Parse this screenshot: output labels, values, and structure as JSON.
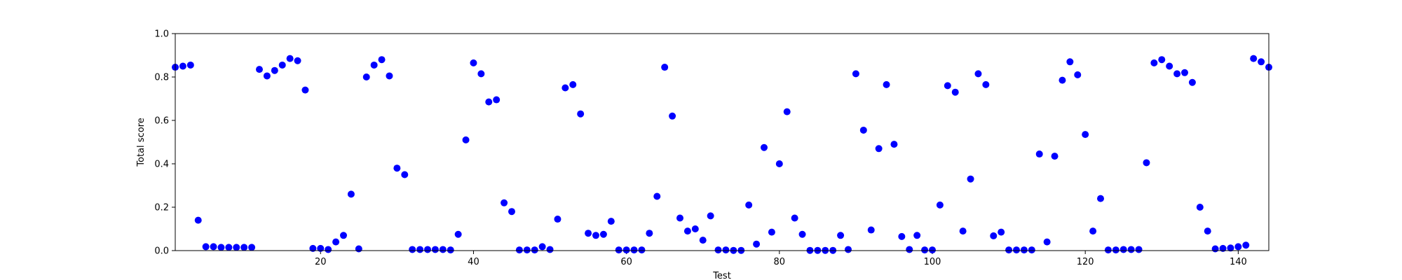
{
  "chart_data": {
    "type": "scatter",
    "title": "",
    "xlabel": "Test",
    "ylabel": "Total score",
    "xlim": [
      1,
      144
    ],
    "ylim": [
      0.0,
      1.0
    ],
    "x_ticks": [
      "20",
      "40",
      "60",
      "80",
      "100",
      "120",
      "140"
    ],
    "x_tick_values": [
      20,
      40,
      60,
      80,
      100,
      120,
      140
    ],
    "y_ticks": [
      "0.0",
      "0.2",
      "0.4",
      "0.6",
      "0.8",
      "1.0"
    ],
    "y_tick_values": [
      0.0,
      0.2,
      0.4,
      0.6,
      0.8,
      1.0
    ],
    "grid": false,
    "legend": "none",
    "marker_color": "#0000ff",
    "series": [
      {
        "x": [
          1,
          2,
          3,
          4,
          5,
          6,
          7,
          8,
          9,
          10,
          11,
          12,
          13,
          14,
          15,
          16,
          17,
          18,
          19,
          20,
          21,
          22,
          23,
          24,
          25,
          26,
          27,
          28,
          29,
          30,
          31,
          32,
          33,
          34,
          35,
          36,
          37,
          38,
          39,
          40,
          41,
          42,
          43,
          44,
          45,
          46,
          47,
          48,
          49,
          50,
          51,
          52,
          53,
          54,
          55,
          56,
          57,
          58,
          59,
          60,
          61,
          62,
          63,
          64,
          65,
          66,
          67,
          68,
          69,
          70,
          71,
          72,
          73,
          74,
          75,
          76,
          77,
          78,
          79,
          80,
          81,
          82,
          83,
          84,
          85,
          86,
          87,
          88,
          89,
          90,
          91,
          92,
          93,
          94,
          95,
          96,
          97,
          98,
          99,
          100,
          101,
          102,
          103,
          104,
          105,
          106,
          107,
          108,
          109,
          110,
          111,
          112,
          113,
          114,
          115,
          116,
          117,
          118,
          119,
          120,
          121,
          122,
          123,
          124,
          125,
          126,
          127,
          128,
          129,
          130,
          131,
          132,
          133,
          134,
          135,
          136,
          137,
          138,
          139,
          140,
          141,
          142,
          143,
          144
        ],
        "y": [
          0.845,
          0.85,
          0.855,
          0.14,
          0.018,
          0.018,
          0.015,
          0.015,
          0.015,
          0.015,
          0.015,
          0.835,
          0.805,
          0.83,
          0.855,
          0.885,
          0.875,
          0.74,
          0.01,
          0.01,
          0.005,
          0.04,
          0.07,
          0.26,
          0.008,
          0.8,
          0.855,
          0.88,
          0.805,
          0.38,
          0.35,
          0.005,
          0.005,
          0.005,
          0.005,
          0.005,
          0.003,
          0.075,
          0.51,
          0.865,
          0.815,
          0.685,
          0.695,
          0.22,
          0.18,
          0.003,
          0.003,
          0.003,
          0.018,
          0.005,
          0.145,
          0.75,
          0.765,
          0.63,
          0.08,
          0.07,
          0.075,
          0.135,
          0.003,
          0.003,
          0.003,
          0.003,
          0.08,
          0.25,
          0.845,
          0.62,
          0.15,
          0.09,
          0.1,
          0.048,
          0.16,
          0.003,
          0.003,
          0.001,
          0.001,
          0.21,
          0.03,
          0.475,
          0.085,
          0.4,
          0.64,
          0.15,
          0.075,
          0.001,
          0.001,
          0.001,
          0.001,
          0.07,
          0.005,
          0.815,
          0.555,
          0.095,
          0.47,
          0.765,
          0.49,
          0.065,
          0.005,
          0.07,
          0.003,
          0.003,
          0.21,
          0.76,
          0.73,
          0.09,
          0.33,
          0.815,
          0.765,
          0.068,
          0.085,
          0.003,
          0.003,
          0.003,
          0.003,
          0.445,
          0.04,
          0.435,
          0.785,
          0.87,
          0.81,
          0.535,
          0.09,
          0.24,
          0.003,
          0.003,
          0.005,
          0.005,
          0.005,
          0.405,
          0.865,
          0.88,
          0.85,
          0.815,
          0.82,
          0.775,
          0.2,
          0.09,
          0.008,
          0.01,
          0.012,
          0.018,
          0.025,
          0.885,
          0.87,
          0.845
        ]
      }
    ]
  }
}
